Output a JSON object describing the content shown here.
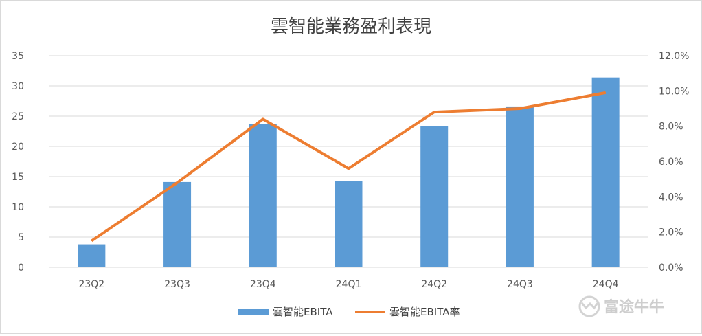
{
  "chart_data": {
    "type": "bar+line",
    "title": "雲智能業務盈利表現",
    "categories": [
      "23Q2",
      "23Q3",
      "23Q4",
      "24Q1",
      "24Q2",
      "24Q3",
      "24Q4"
    ],
    "series": [
      {
        "name": "雲智能EBITA",
        "type": "bar",
        "axis": "left",
        "values": [
          3.8,
          14.1,
          23.7,
          14.3,
          23.4,
          26.6,
          31.4
        ],
        "color": "#5b9bd5"
      },
      {
        "name": "雲智能EBITA率",
        "type": "line",
        "axis": "right",
        "values": [
          1.5,
          4.8,
          8.4,
          5.6,
          8.8,
          9.0,
          9.9
        ],
        "color": "#ed7d31"
      }
    ],
    "y_left": {
      "min": 0,
      "max": 35,
      "ticks": [
        "0",
        "5",
        "10",
        "15",
        "20",
        "25",
        "30",
        "35"
      ]
    },
    "y_right": {
      "min": 0,
      "max": 12,
      "ticks": [
        "0.0%",
        "2.0%",
        "4.0%",
        "6.0%",
        "8.0%",
        "10.0%",
        "12.0%"
      ]
    },
    "grid": true,
    "legend": "bottom"
  },
  "watermark": {
    "text": "富途牛牛",
    "icon": "futu-bull-icon"
  }
}
